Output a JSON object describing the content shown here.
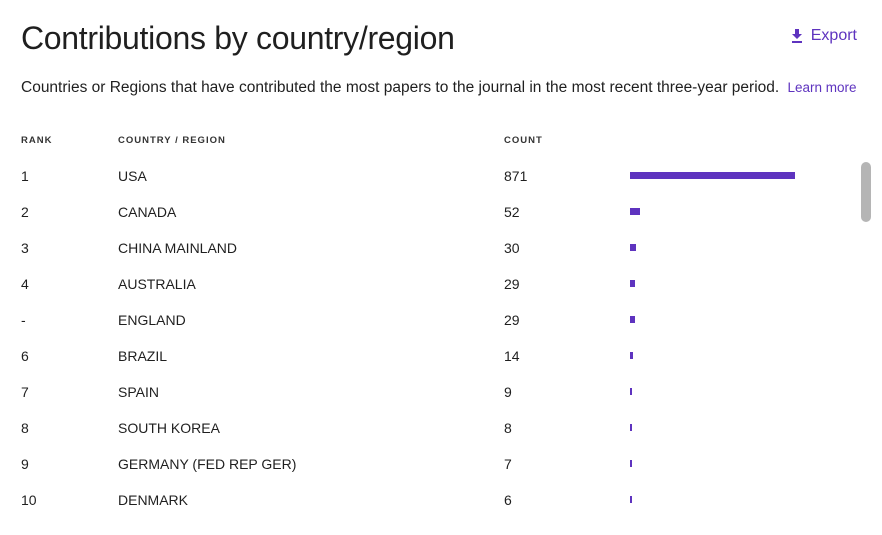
{
  "header": {
    "title": "Contributions by country/region",
    "export_label": "Export",
    "export_icon": "download-icon"
  },
  "description": {
    "text": "Countries or Regions that have contributed the most papers to the journal in the most recent three-year period.",
    "learn_more": "Learn more"
  },
  "table": {
    "columns": {
      "rank": "RANK",
      "country": "COUNTRY / REGION",
      "count": "COUNT"
    },
    "bar_color": "#5e33bf",
    "max_count": 871,
    "rows": [
      {
        "rank": "1",
        "country": "USA",
        "count": 871
      },
      {
        "rank": "2",
        "country": "CANADA",
        "count": 52
      },
      {
        "rank": "3",
        "country": "CHINA MAINLAND",
        "count": 30
      },
      {
        "rank": "4",
        "country": "AUSTRALIA",
        "count": 29
      },
      {
        "rank": "-",
        "country": "ENGLAND",
        "count": 29
      },
      {
        "rank": "6",
        "country": "BRAZIL",
        "count": 14
      },
      {
        "rank": "7",
        "country": "SPAIN",
        "count": 9
      },
      {
        "rank": "8",
        "country": "SOUTH KOREA",
        "count": 8
      },
      {
        "rank": "9",
        "country": "GERMANY (FED REP GER)",
        "count": 7
      },
      {
        "rank": "10",
        "country": "DENMARK",
        "count": 6
      }
    ]
  },
  "accent_color": "#5e33bf"
}
